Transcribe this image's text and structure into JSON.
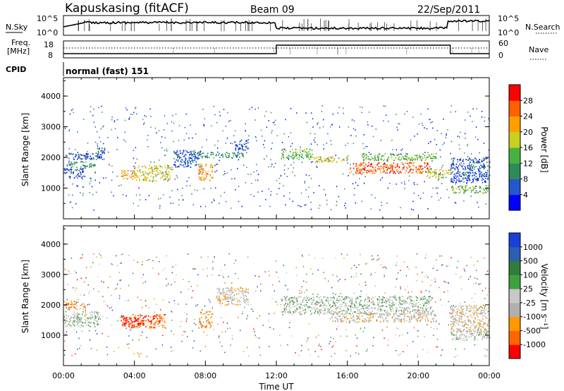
{
  "header": {
    "station": "Kapuskasing (fitACF)",
    "beam": "Beam 09",
    "date": "22/Sep/2011"
  },
  "panels": {
    "noise": {
      "left_label": "N.Sky",
      "right_label": "N.Search",
      "left_ticks": [
        "10^5",
        "10^0"
      ],
      "right_ticks": [
        "10^5",
        "10^0"
      ]
    },
    "freq": {
      "left_label_1": "Freq.",
      "left_label_2": "[MHz]",
      "left_ticks": [
        "18",
        "8"
      ],
      "right_label": "Nave",
      "right_ticks": [
        "60",
        "0"
      ]
    },
    "cpid": {
      "label": "CPID",
      "text": "normal (fast) 151"
    }
  },
  "colors": {
    "power_scale": [
      "#0000ff",
      "#2457c9",
      "#2f8a5a",
      "#46b340",
      "#c8d020",
      "#ffa000",
      "#ff6000",
      "#ff0000"
    ],
    "velocity_scale": [
      "#ff0000",
      "#ff6600",
      "#ff9a00",
      "#b0b0b0",
      "#c8c8c8",
      "#3fa040",
      "#2e7d3a",
      "#2a60b0",
      "#1a3fd8"
    ]
  },
  "chart_data": [
    {
      "type": "heatmap",
      "name": "power-panel",
      "ylabel": "Slant Range [km]",
      "yticks": [
        "1000",
        "2000",
        "3000",
        "4000"
      ],
      "ylim": [
        0,
        4600
      ],
      "xlim": [
        0,
        24
      ],
      "colorbar": {
        "label": "Power [dB]",
        "ticks": [
          "4",
          "8",
          "12",
          "16",
          "20",
          "24",
          "28"
        ]
      },
      "features": [
        {
          "t": [
            0.0,
            2.3
          ],
          "range": [
            1950,
            2150
          ],
          "level": 1
        },
        {
          "t": [
            0.0,
            1.2
          ],
          "range": [
            1350,
            1650
          ],
          "level": 1
        },
        {
          "t": [
            0.2,
            1.8
          ],
          "range": [
            1700,
            1900
          ],
          "level": 2
        },
        {
          "t": [
            1.8,
            2.3
          ],
          "range": [
            1950,
            2350
          ],
          "level": 1
        },
        {
          "t": [
            3.2,
            4.1
          ],
          "range": [
            1300,
            1600
          ],
          "level": 5
        },
        {
          "t": [
            4.0,
            6.1
          ],
          "range": [
            1250,
            1750
          ],
          "level": 4
        },
        {
          "t": [
            6.2,
            7.7
          ],
          "range": [
            1700,
            2250
          ],
          "level": 1
        },
        {
          "t": [
            7.6,
            8.4
          ],
          "range": [
            1250,
            1800
          ],
          "level": 5
        },
        {
          "t": [
            7.4,
            10.2
          ],
          "range": [
            2000,
            2200
          ],
          "level": 2
        },
        {
          "t": [
            9.6,
            10.4
          ],
          "range": [
            2250,
            2600
          ],
          "level": 1
        },
        {
          "t": [
            12.2,
            14.0
          ],
          "range": [
            1950,
            2300
          ],
          "level": 3
        },
        {
          "t": [
            14.0,
            16.0
          ],
          "range": [
            1850,
            2050
          ],
          "level": 4
        },
        {
          "t": [
            16.0,
            20.6
          ],
          "range": [
            1500,
            1850
          ],
          "level": 6
        },
        {
          "t": [
            16.8,
            21.0
          ],
          "range": [
            1900,
            2150
          ],
          "level": 3
        },
        {
          "t": [
            20.4,
            21.8
          ],
          "range": [
            1350,
            1650
          ],
          "level": 4
        },
        {
          "t": [
            21.8,
            24.0
          ],
          "range": [
            850,
            1100
          ],
          "level": 3
        },
        {
          "t": [
            21.8,
            24.0
          ],
          "range": [
            1200,
            2000
          ],
          "level": 1
        }
      ]
    },
    {
      "type": "heatmap",
      "name": "velocity-panel",
      "ylabel": "Slant Range [km]",
      "yticks": [
        "1000",
        "2000",
        "3000",
        "4000"
      ],
      "ylim": [
        0,
        4600
      ],
      "xlim": [
        0,
        24
      ],
      "xlabel": "Time UT",
      "xticks": [
        "00:00",
        "04:00",
        "08:00",
        "12:00",
        "16:00",
        "20:00",
        "00:00"
      ],
      "colorbar": {
        "label": "Velocity [m s⁻¹]",
        "ticks": [
          "1000",
          "500",
          "100",
          "25",
          "-25",
          "-100",
          "-500",
          "-1000"
        ]
      },
      "features": [
        {
          "t": [
            0.0,
            1.2
          ],
          "range": [
            1850,
            2150
          ],
          "level": 2
        },
        {
          "t": [
            0.0,
            2.0
          ],
          "range": [
            1300,
            1800
          ],
          "level": 4
        },
        {
          "t": [
            3.2,
            5.8
          ],
          "range": [
            1250,
            1700
          ],
          "level": 1
        },
        {
          "t": [
            3.4,
            4.5
          ],
          "range": [
            1350,
            1600
          ],
          "level": 0
        },
        {
          "t": [
            7.6,
            8.4
          ],
          "range": [
            1250,
            1800
          ],
          "level": 2
        },
        {
          "t": [
            8.6,
            10.4
          ],
          "range": [
            2000,
            2600
          ],
          "level": 3
        },
        {
          "t": [
            12.2,
            20.8
          ],
          "range": [
            1700,
            2300
          ],
          "level": 4
        },
        {
          "t": [
            15.0,
            21.0
          ],
          "range": [
            1450,
            1750
          ],
          "level": 3
        },
        {
          "t": [
            21.8,
            24.0
          ],
          "range": [
            850,
            1100
          ],
          "level": 4
        },
        {
          "t": [
            21.8,
            24.0
          ],
          "range": [
            1100,
            2000
          ],
          "level": 3
        }
      ]
    }
  ]
}
